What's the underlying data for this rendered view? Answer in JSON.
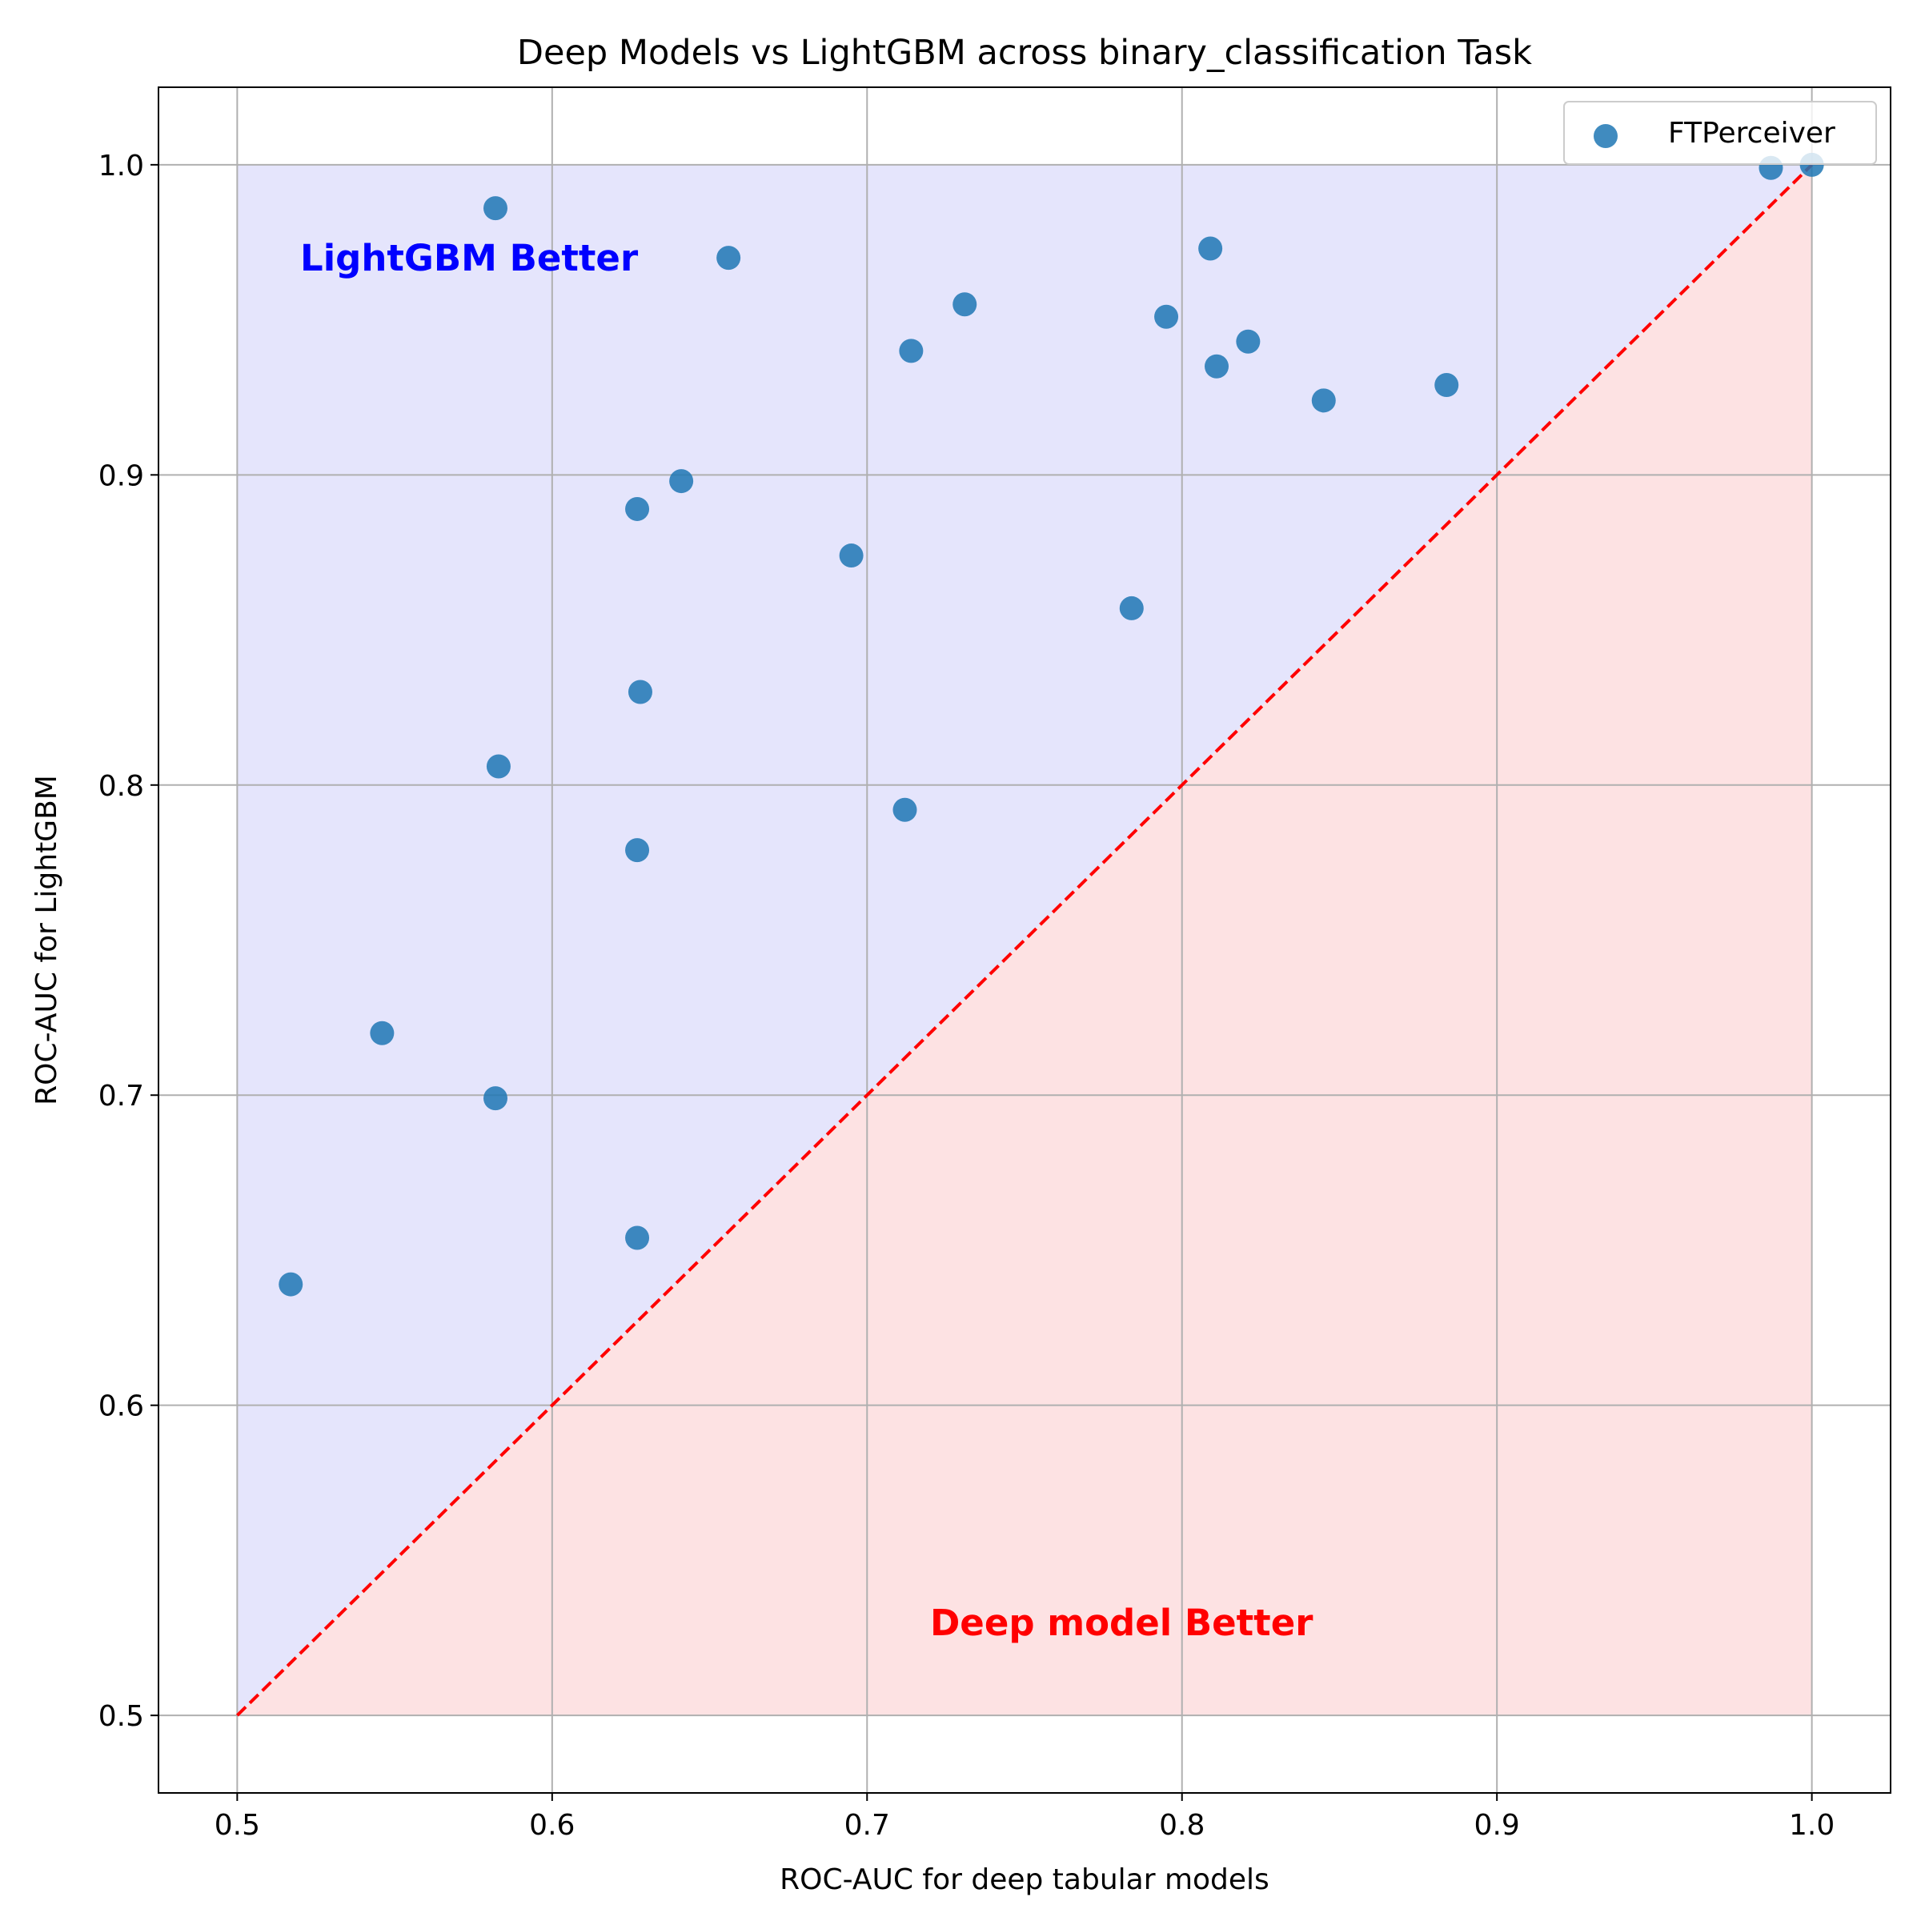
{
  "chart_data": {
    "type": "scatter",
    "title": "Deep Models vs LightGBM across binary_classification Task",
    "xlabel": "ROC-AUC for deep tabular models",
    "ylabel": "ROC-AUC for LightGBM",
    "xlim": [
      0.475,
      1.025
    ],
    "ylim": [
      0.475,
      1.025
    ],
    "xticks": [
      0.5,
      0.6,
      0.7,
      0.8,
      0.9,
      1.0
    ],
    "yticks": [
      0.5,
      0.6,
      0.7,
      0.8,
      0.9,
      1.0
    ],
    "xtick_labels": [
      "0.5",
      "0.6",
      "0.7",
      "0.8",
      "0.9",
      "1.0"
    ],
    "ytick_labels": [
      "0.5",
      "0.6",
      "0.7",
      "0.8",
      "0.9",
      "1.0"
    ],
    "grid": true,
    "legend_position": "top-right",
    "series": [
      {
        "name": "FTPerceiver",
        "color": "#1f77b4",
        "x": [
          0.517,
          0.546,
          0.582,
          0.583,
          0.582,
          0.627,
          0.627,
          0.628,
          0.627,
          0.641,
          0.656,
          0.695,
          0.712,
          0.714,
          0.731,
          0.784,
          0.795,
          0.809,
          0.811,
          0.821,
          0.845,
          0.884,
          0.987,
          1.0
        ],
        "y": [
          0.639,
          0.72,
          0.699,
          0.806,
          0.986,
          0.654,
          0.779,
          0.83,
          0.889,
          0.898,
          0.97,
          0.874,
          0.792,
          0.94,
          0.955,
          0.857,
          0.951,
          0.973,
          0.935,
          0.943,
          0.924,
          0.929,
          0.999,
          1.0
        ]
      }
    ],
    "diagonal": {
      "x": [
        0.5,
        1.0
      ],
      "y": [
        0.5,
        1.0
      ],
      "color": "#ff0000",
      "style": "dashed"
    },
    "regions": {
      "upper": {
        "label": "LightGBM Better",
        "label_x": 0.52,
        "label_y": 0.97,
        "fill": "#e5e5fc",
        "text_color": "#0000ff"
      },
      "lower": {
        "label": "Deep model Better",
        "label_x": 0.72,
        "label_y": 0.53,
        "fill": "#fde2e3",
        "text_color": "#ff0000"
      }
    }
  }
}
